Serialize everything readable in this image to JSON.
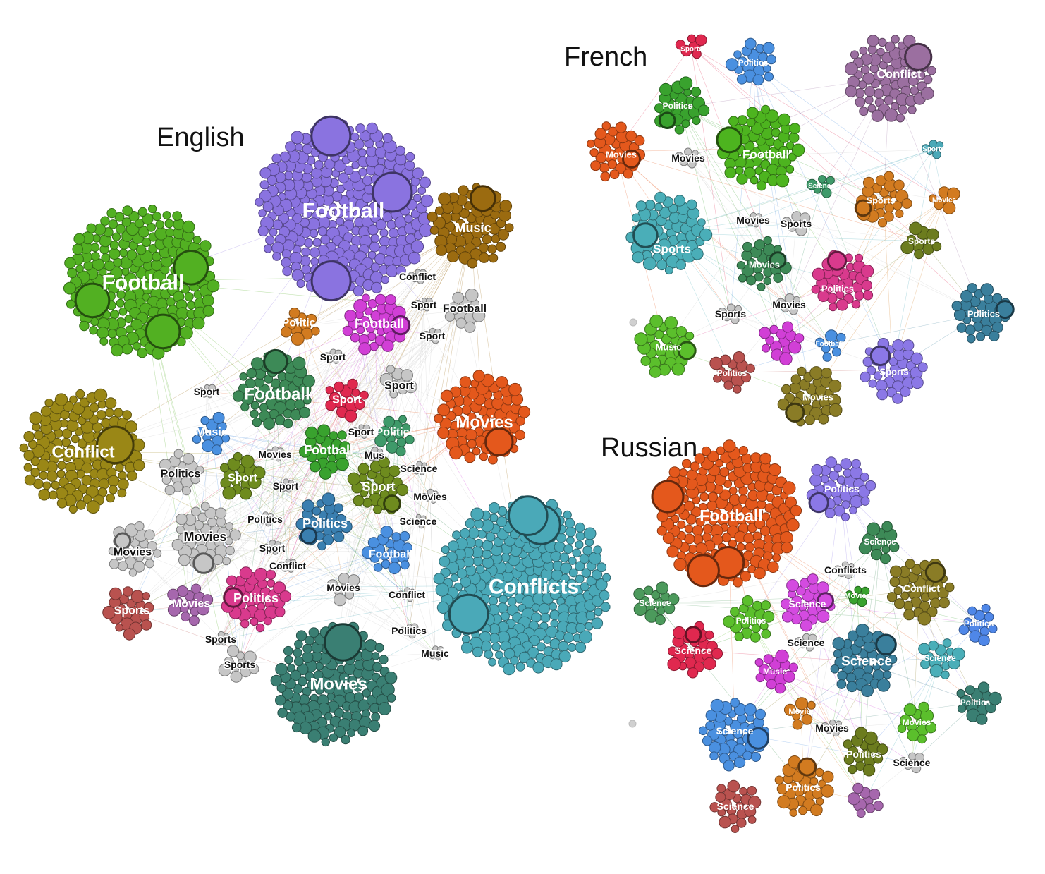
{
  "colors": {
    "gray": "#c6c6c6",
    "purple": "#8a73e0",
    "green_light": "#52b022",
    "brown": "#9b6b10",
    "olive": "#9a8716",
    "green_dark": "#3d8a57",
    "magenta": "#d13fd6",
    "crimson": "#e0284f",
    "orange": "#e4581c",
    "blue_light": "#4a90e0",
    "green_mid": "#39a22e",
    "olive_green": "#6e8b1e",
    "steel_blue": "#3a7fb0",
    "teal": "#4aa9b8",
    "pink": "#d93a8d",
    "rose_brown": "#b9524f",
    "lilac": "#a667ad",
    "teal_dark": "#3a7f73",
    "purple_dark": "#8f5f97",
    "plum": "#9b6fa0",
    "olive_dark": "#6c7c1e",
    "amber": "#d27b20",
    "violet": "#8b78e6",
    "seafoam": "#3f9a6a",
    "ochre": "#8a7c26",
    "magenta_light": "#d44be0",
    "cadet": "#3a7f9c",
    "lime": "#5bbf2c",
    "cornflower": "#4f87e8",
    "sky": "#4aaeb8",
    "fern": "#4c9a5c",
    "bright_green": "#4db41f"
  },
  "panels": [
    {
      "title": "English",
      "clusters": [
        {
          "label": "Football",
          "color": "purple",
          "size": "xl"
        },
        {
          "label": "Football",
          "color": "green_light",
          "size": "xl"
        },
        {
          "label": "Music",
          "color": "brown",
          "size": "m"
        },
        {
          "label": "Conflict",
          "color": "gray",
          "size": "xs"
        },
        {
          "label": "Sport",
          "color": "gray",
          "size": "xs"
        },
        {
          "label": "Football",
          "color": "gray",
          "size": "s"
        },
        {
          "label": "Politics",
          "color": "amber",
          "size": "s"
        },
        {
          "label": "Football",
          "color": "magenta",
          "size": "m"
        },
        {
          "label": "Sport",
          "color": "gray",
          "size": "xs"
        },
        {
          "label": "Sport",
          "color": "gray",
          "size": "xs"
        },
        {
          "label": "Sport",
          "color": "gray",
          "size": "s"
        },
        {
          "label": "Football",
          "color": "green_dark",
          "size": "l"
        },
        {
          "label": "Sport",
          "color": "crimson",
          "size": "s"
        },
        {
          "label": "Movies",
          "color": "orange",
          "size": "l"
        },
        {
          "label": "Sport",
          "color": "gray",
          "size": "xs"
        },
        {
          "label": "Conflict",
          "color": "olive",
          "size": "l"
        },
        {
          "label": "Music",
          "color": "blue_light",
          "size": "s"
        },
        {
          "label": "Sport",
          "color": "gray",
          "size": "xs"
        },
        {
          "label": "Politics",
          "color": "seafoam",
          "size": "s"
        },
        {
          "label": "Football",
          "color": "green_mid",
          "size": "m"
        },
        {
          "label": "Movies",
          "color": "gray",
          "size": "xs"
        },
        {
          "label": "Mus",
          "color": "gray",
          "size": "xs"
        },
        {
          "label": "Politics",
          "color": "gray",
          "size": "s"
        },
        {
          "label": "Sport",
          "color": "olive_green",
          "size": "s"
        },
        {
          "label": "Sport",
          "color": "gray",
          "size": "xs"
        },
        {
          "label": "Science",
          "color": "gray",
          "size": "xs"
        },
        {
          "label": "Sport",
          "color": "olive_green",
          "size": "m"
        },
        {
          "label": "Movies",
          "color": "gray",
          "size": "xs"
        },
        {
          "label": "Politics",
          "color": "gray",
          "size": "xs"
        },
        {
          "label": "Politics",
          "color": "steel_blue",
          "size": "m"
        },
        {
          "label": "Science",
          "color": "gray",
          "size": "xs"
        },
        {
          "label": "Movies",
          "color": "gray",
          "size": "m"
        },
        {
          "label": "Movies",
          "color": "gray",
          "size": "s"
        },
        {
          "label": "Sport",
          "color": "gray",
          "size": "xs"
        },
        {
          "label": "Conflict",
          "color": "gray",
          "size": "xs"
        },
        {
          "label": "Football",
          "color": "blue_light",
          "size": "s"
        },
        {
          "label": "Conflicts",
          "color": "teal",
          "size": "xl"
        },
        {
          "label": "Movies",
          "color": "gray",
          "size": "xs"
        },
        {
          "label": "Conflict",
          "color": "gray",
          "size": "xs"
        },
        {
          "label": "Sports",
          "color": "rose_brown",
          "size": "s"
        },
        {
          "label": "Movies",
          "color": "lilac",
          "size": "s"
        },
        {
          "label": "Politics",
          "color": "pink",
          "size": "m"
        },
        {
          "label": "Sports",
          "color": "gray",
          "size": "xs"
        },
        {
          "label": "Sports",
          "color": "gray",
          "size": "xs"
        },
        {
          "label": "Politics",
          "color": "gray",
          "size": "xs"
        },
        {
          "label": "Music",
          "color": "gray",
          "size": "xs"
        },
        {
          "label": "Movies",
          "color": "teal_dark",
          "size": "l"
        }
      ]
    },
    {
      "title": "French",
      "clusters": [
        {
          "label": "Sports",
          "color": "crimson",
          "size": "xs"
        },
        {
          "label": "Politics",
          "color": "blue_light",
          "size": "s"
        },
        {
          "label": "Conflict",
          "color": "plum",
          "size": "l"
        },
        {
          "label": "Politics",
          "color": "green_mid",
          "size": "s"
        },
        {
          "label": "Movies",
          "color": "orange",
          "size": "m"
        },
        {
          "label": "Movies",
          "color": "gray",
          "size": "xs"
        },
        {
          "label": "Football",
          "color": "bright_green",
          "size": "l"
        },
        {
          "label": "Sports",
          "color": "teal",
          "size": "xs"
        },
        {
          "label": "Science",
          "color": "seafoam",
          "size": "xs"
        },
        {
          "label": "Sports",
          "color": "amber",
          "size": "m"
        },
        {
          "label": "Movies",
          "color": "amber",
          "size": "xs"
        },
        {
          "label": "Sports",
          "color": "sky",
          "size": "l"
        },
        {
          "label": "Movies",
          "color": "gray",
          "size": "xs"
        },
        {
          "label": "Sports",
          "color": "gray",
          "size": "xs"
        },
        {
          "label": "Sports",
          "color": "olive_dark",
          "size": "s"
        },
        {
          "label": "Movies",
          "color": "green_dark",
          "size": "m"
        },
        {
          "label": "Politics",
          "color": "pink",
          "size": "m"
        },
        {
          "label": "Politics",
          "color": "cadet",
          "size": "m"
        },
        {
          "label": "Sports",
          "color": "gray",
          "size": "xs"
        },
        {
          "label": "Movies",
          "color": "gray",
          "size": "xs"
        },
        {
          "label": "Football",
          "color": "blue_light",
          "size": "xs"
        },
        {
          "label": "Music",
          "color": "lime",
          "size": "m"
        },
        {
          "label": "Politics",
          "color": "rose_brown",
          "size": "s"
        },
        {
          "label": "Sports",
          "color": "violet",
          "size": "m"
        },
        {
          "label": "Movies",
          "color": "ochre",
          "size": "m"
        },
        {
          "label": "",
          "color": "magenta",
          "size": "s"
        }
      ]
    },
    {
      "title": "Russian",
      "clusters": [
        {
          "label": "Football",
          "color": "orange",
          "size": "xl"
        },
        {
          "label": "Politics",
          "color": "violet",
          "size": "m"
        },
        {
          "label": "Science",
          "color": "green_dark",
          "size": "s"
        },
        {
          "label": "Conflicts",
          "color": "gray",
          "size": "xs"
        },
        {
          "label": "Conflict",
          "color": "ochre",
          "size": "m"
        },
        {
          "label": "Science",
          "color": "fern",
          "size": "s"
        },
        {
          "label": "Politics",
          "color": "lime",
          "size": "s"
        },
        {
          "label": "Science",
          "color": "magenta_light",
          "size": "m"
        },
        {
          "label": "Movies",
          "color": "green_mid",
          "size": "xs"
        },
        {
          "label": "Politics",
          "color": "cornflower",
          "size": "s"
        },
        {
          "label": "Science",
          "color": "crimson",
          "size": "m"
        },
        {
          "label": "Science",
          "color": "gray",
          "size": "xs"
        },
        {
          "label": "Music",
          "color": "magenta",
          "size": "s"
        },
        {
          "label": "Science",
          "color": "cadet",
          "size": "l"
        },
        {
          "label": "Science",
          "color": "sky",
          "size": "s"
        },
        {
          "label": "Movies",
          "color": "amber",
          "size": "xs"
        },
        {
          "label": "Politics",
          "color": "teal_dark",
          "size": "s"
        },
        {
          "label": "Science",
          "color": "blue_light",
          "size": "m"
        },
        {
          "label": "Movies",
          "color": "gray",
          "size": "xs"
        },
        {
          "label": "Movies",
          "color": "lime",
          "size": "s"
        },
        {
          "label": "Politics",
          "color": "olive_dark",
          "size": "m"
        },
        {
          "label": "Science",
          "color": "gray",
          "size": "xs"
        },
        {
          "label": "Politics",
          "color": "amber",
          "size": "m"
        },
        {
          "label": "Science",
          "color": "rose_brown",
          "size": "m"
        },
        {
          "label": "",
          "color": "lilac",
          "size": "s"
        }
      ]
    }
  ]
}
